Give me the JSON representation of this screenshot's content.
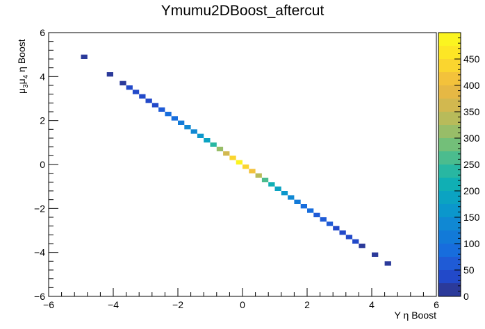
{
  "chart_data": {
    "type": "heatmap",
    "title": "Ymumu2DBoost_aftercut",
    "xlabel": "Υ  η Boost",
    "ylabel": "μ3μ4  η Boost",
    "xlim": [
      -6,
      6
    ],
    "ylim": [
      -6,
      6
    ],
    "x_ticks": [
      "−6",
      "−4",
      "−2",
      "0",
      "2",
      "4",
      "6"
    ],
    "y_ticks": [
      "−6",
      "−4",
      "−2",
      "0",
      "2",
      "4",
      "6"
    ],
    "zlim": [
      0,
      500
    ],
    "z_ticks": [
      "0",
      "50",
      "100",
      "150",
      "200",
      "250",
      "300",
      "350",
      "400",
      "450"
    ],
    "colormap": [
      "#2b3a9a",
      "#2249c9",
      "#1f5bd6",
      "#176ddd",
      "#127ad8",
      "#1088d3",
      "#0b97cc",
      "#0ba3c2",
      "#10afb4",
      "#28b7a2",
      "#4bbc8e",
      "#73bf79",
      "#98bd68",
      "#b8bb5a",
      "#d2b84f",
      "#e6b844",
      "#f3c23b",
      "#fad52f",
      "#fde625",
      "#fbf420"
    ],
    "bin_size": 0.2,
    "bins": [
      {
        "x": -4.9,
        "y": 4.9,
        "z": 12
      },
      {
        "x": -4.1,
        "y": 4.1,
        "z": 18
      },
      {
        "x": -3.7,
        "y": 3.7,
        "z": 20
      },
      {
        "x": -3.5,
        "y": 3.5,
        "z": 25
      },
      {
        "x": -3.3,
        "y": 3.3,
        "z": 30
      },
      {
        "x": -3.1,
        "y": 3.1,
        "z": 32
      },
      {
        "x": -2.9,
        "y": 2.9,
        "z": 38
      },
      {
        "x": -2.7,
        "y": 2.7,
        "z": 45
      },
      {
        "x": -2.5,
        "y": 2.5,
        "z": 70
      },
      {
        "x": -2.3,
        "y": 2.3,
        "z": 80
      },
      {
        "x": -2.1,
        "y": 2.1,
        "z": 90
      },
      {
        "x": -1.9,
        "y": 1.9,
        "z": 110
      },
      {
        "x": -1.7,
        "y": 1.7,
        "z": 125
      },
      {
        "x": -1.5,
        "y": 1.5,
        "z": 140
      },
      {
        "x": -1.3,
        "y": 1.3,
        "z": 160
      },
      {
        "x": -1.1,
        "y": 1.1,
        "z": 190
      },
      {
        "x": -0.9,
        "y": 0.9,
        "z": 230
      },
      {
        "x": -0.7,
        "y": 0.7,
        "z": 310
      },
      {
        "x": -0.5,
        "y": 0.5,
        "z": 370
      },
      {
        "x": -0.3,
        "y": 0.3,
        "z": 430
      },
      {
        "x": -0.1,
        "y": 0.1,
        "z": 480
      },
      {
        "x": 0.1,
        "y": -0.1,
        "z": 440
      },
      {
        "x": 0.3,
        "y": -0.3,
        "z": 400
      },
      {
        "x": 0.5,
        "y": -0.5,
        "z": 330
      },
      {
        "x": 0.7,
        "y": -0.7,
        "z": 260
      },
      {
        "x": 0.9,
        "y": -0.9,
        "z": 220
      },
      {
        "x": 1.1,
        "y": -1.1,
        "z": 175
      },
      {
        "x": 1.3,
        "y": -1.3,
        "z": 150
      },
      {
        "x": 1.5,
        "y": -1.5,
        "z": 125
      },
      {
        "x": 1.7,
        "y": -1.7,
        "z": 110
      },
      {
        "x": 1.9,
        "y": -1.9,
        "z": 95
      },
      {
        "x": 2.1,
        "y": -2.1,
        "z": 80
      },
      {
        "x": 2.3,
        "y": -2.3,
        "z": 70
      },
      {
        "x": 2.5,
        "y": -2.5,
        "z": 60
      },
      {
        "x": 2.7,
        "y": -2.7,
        "z": 50
      },
      {
        "x": 2.9,
        "y": -2.9,
        "z": 40
      },
      {
        "x": 3.1,
        "y": -3.1,
        "z": 35
      },
      {
        "x": 3.3,
        "y": -3.3,
        "z": 30
      },
      {
        "x": 3.5,
        "y": -3.5,
        "z": 25
      },
      {
        "x": 3.7,
        "y": -3.7,
        "z": 20
      },
      {
        "x": 4.1,
        "y": -4.1,
        "z": 15
      },
      {
        "x": 4.5,
        "y": -4.5,
        "z": 12
      }
    ]
  }
}
